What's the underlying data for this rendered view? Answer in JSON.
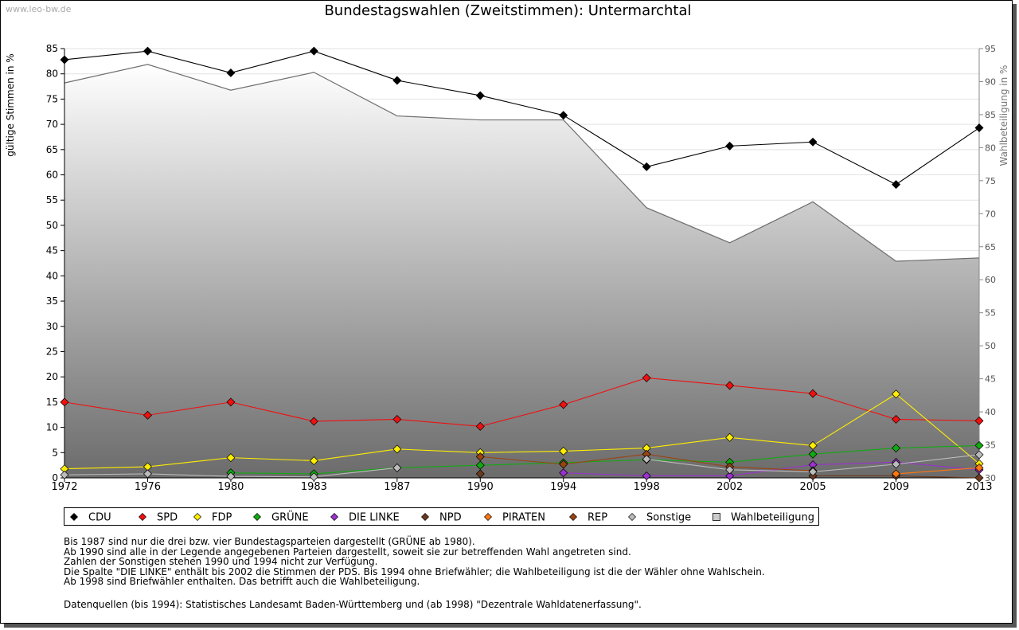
{
  "watermark": "www.leo-bw.de",
  "chart_data": {
    "type": "line",
    "title": "Bundestagswahlen (Zweitstimmen): Untermarchtal",
    "ylabel": "gültige Stimmen in %",
    "y2label": "Wahlbeteiligung in %",
    "xlabel": "",
    "x": [
      "1972",
      "1976",
      "1980",
      "1983",
      "1987",
      "1990",
      "1994",
      "1998",
      "2002",
      "2005",
      "2009",
      "2013"
    ],
    "ylim": [
      0,
      85
    ],
    "yticks": [
      0,
      5,
      10,
      15,
      20,
      25,
      30,
      35,
      40,
      45,
      50,
      55,
      60,
      65,
      70,
      75,
      80,
      85
    ],
    "y2lim": [
      30,
      95
    ],
    "y2ticks": [
      30,
      35,
      40,
      45,
      50,
      55,
      60,
      65,
      70,
      75,
      80,
      85,
      90,
      95
    ],
    "grid": true,
    "legend_position": "bottom",
    "area": {
      "name": "Wahlbeteiligung",
      "color": "#808080",
      "values": [
        89.8,
        92.6,
        88.7,
        91.4,
        84.8,
        84.2,
        84.2,
        70.9,
        65.6,
        71.8,
        62.8,
        63.3
      ]
    },
    "series": [
      {
        "name": "CDU",
        "color": "#000000",
        "values": [
          82.8,
          84.5,
          80.2,
          84.5,
          78.7,
          75.7,
          71.8,
          61.6,
          65.7,
          66.5,
          58.1,
          69.3
        ]
      },
      {
        "name": "SPD",
        "color": "#ee1111",
        "values": [
          15.0,
          12.4,
          15.0,
          11.2,
          11.6,
          10.2,
          14.5,
          19.8,
          18.3,
          16.7,
          11.6,
          11.3
        ]
      },
      {
        "name": "FDP",
        "color": "#ffee00",
        "values": [
          1.8,
          2.2,
          4.0,
          3.4,
          5.7,
          5.0,
          5.3,
          5.9,
          8.0,
          6.4,
          16.6,
          2.8
        ]
      },
      {
        "name": "GRÜNE",
        "color": "#11aa11",
        "values": [
          null,
          null,
          1.0,
          0.8,
          2.0,
          2.5,
          3.0,
          3.6,
          3.1,
          4.7,
          5.9,
          6.4
        ]
      },
      {
        "name": "DIE LINKE",
        "color": "#9933cc",
        "values": [
          null,
          null,
          null,
          null,
          null,
          null,
          1.0,
          0.4,
          0.4,
          2.6,
          3.1,
          1.6
        ]
      },
      {
        "name": "NPD",
        "color": "#6b3a1e",
        "values": [
          null,
          null,
          null,
          null,
          null,
          0.8,
          null,
          null,
          null,
          0.4,
          0.4,
          0.0
        ]
      },
      {
        "name": "PIRATEN",
        "color": "#ff7711",
        "values": [
          null,
          null,
          null,
          null,
          null,
          null,
          null,
          null,
          null,
          null,
          0.8,
          2.0
        ]
      },
      {
        "name": "REP",
        "color": "#994411",
        "values": [
          null,
          null,
          null,
          null,
          null,
          4.2,
          2.7,
          4.7,
          2.2,
          1.4,
          null,
          null
        ]
      },
      {
        "name": "Sonstige",
        "color": "#bbbbbb",
        "values": [
          0.6,
          0.8,
          0.3,
          0.2,
          2.0,
          null,
          null,
          3.7,
          1.6,
          1.2,
          2.7,
          4.6
        ]
      }
    ],
    "legend": [
      "CDU",
      "SPD",
      "FDP",
      "GRÜNE",
      "DIE LINKE",
      "NPD",
      "PIRATEN",
      "REP",
      "Sonstige",
      "Wahlbeteiligung"
    ]
  },
  "notes": [
    "Bis 1987 sind nur die drei bzw. vier Bundestagsparteien dargestellt (GRÜNE ab 1980).",
    "Ab 1990 sind alle in der Legende angegebenen Parteien dargestellt, soweit sie zur betreffenden Wahl angetreten sind.",
    "Zahlen der Sonstigen stehen 1990 und 1994 nicht zur Verfügung.",
    "Die Spalte \"DIE LINKE\" enthält bis 2002 die Stimmen der PDS. Bis 1994 ohne Briefwähler; die Wahlbeteiligung ist die der Wähler ohne Wahlschein.",
    "Ab 1998 sind Briefwähler enthalten. Das betrifft auch die Wahlbeteiligung."
  ],
  "source": "Datenquellen (bis 1994): Statistisches Landesamt Baden-Württemberg und (ab 1998) \"Dezentrale Wahldatenerfassung\"."
}
